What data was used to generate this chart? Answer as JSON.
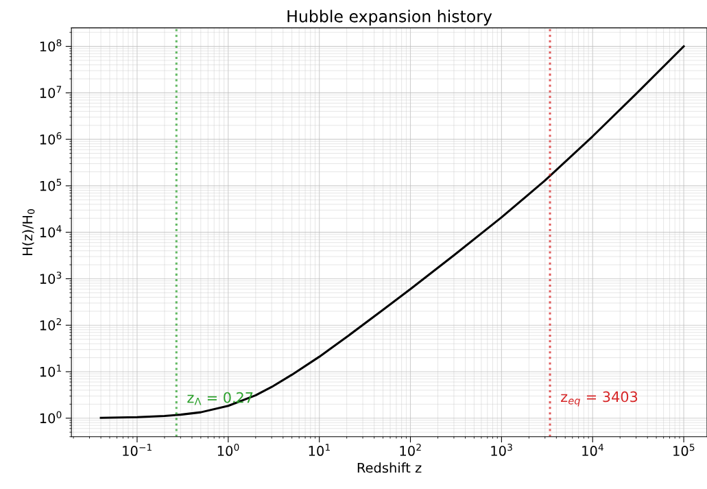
{
  "chart_data": {
    "type": "line",
    "title": "Hubble expansion history",
    "xlabel": "Redshift z",
    "ylabel": "H(z)/H$_{0}$",
    "log": "xy",
    "grid": true,
    "marker": "none",
    "line_style": "solid",
    "x": [
      0.04,
      0.1,
      0.2,
      0.3,
      0.5,
      1,
      2,
      3,
      5,
      10,
      20,
      50,
      100,
      300,
      1000,
      3000,
      10000,
      30000,
      100000
    ],
    "series": [
      {
        "color": "#000000",
        "values": [
          1.02,
          1.05,
          1.12,
          1.19,
          1.34,
          1.84,
          3.1,
          4.7,
          8.6,
          21,
          56,
          214,
          600,
          3200,
          21000,
          130000,
          1160000,
          9500000,
          100000000
        ]
      }
    ],
    "xlim": [
      0.019,
      180000
    ],
    "ylim": [
      0.4,
      250000000
    ],
    "xticks": [
      {
        "value": 0.1,
        "label": "10$^{−1}$"
      },
      {
        "value": 1,
        "label": "10$^{0}$"
      },
      {
        "value": 10,
        "label": "10$^{1}$"
      },
      {
        "value": 100,
        "label": "10$^{2}$"
      },
      {
        "value": 1000,
        "label": "10$^{3}$"
      },
      {
        "value": 10000,
        "label": "10$^{4}$"
      },
      {
        "value": 100000,
        "label": "10$^{5}$"
      }
    ],
    "yticks": [
      {
        "value": 1,
        "label": "10$^{0}$"
      },
      {
        "value": 10,
        "label": "10$^{1}$"
      },
      {
        "value": 100,
        "label": "10$^{2}$"
      },
      {
        "value": 1000,
        "label": "10$^{3}$"
      },
      {
        "value": 10000,
        "label": "10$^{4}$"
      },
      {
        "value": 100000,
        "label": "10$^{5}$"
      },
      {
        "value": 1000000,
        "label": "10$^{6}$"
      },
      {
        "value": 10000000,
        "label": "10$^{7}$"
      },
      {
        "value": 100000000,
        "label": "10$^{8}$"
      }
    ],
    "ref_lines": [
      {
        "axis": "x",
        "value": 0.27,
        "label": "z$_{Λ}$ = 0.27",
        "color": "#2ca02c",
        "line_style": "dotted"
      },
      {
        "axis": "x",
        "value": 3403,
        "label": "z$_{eq}$ = 3403",
        "color": "#d62728",
        "line_style": "dotted"
      }
    ]
  }
}
